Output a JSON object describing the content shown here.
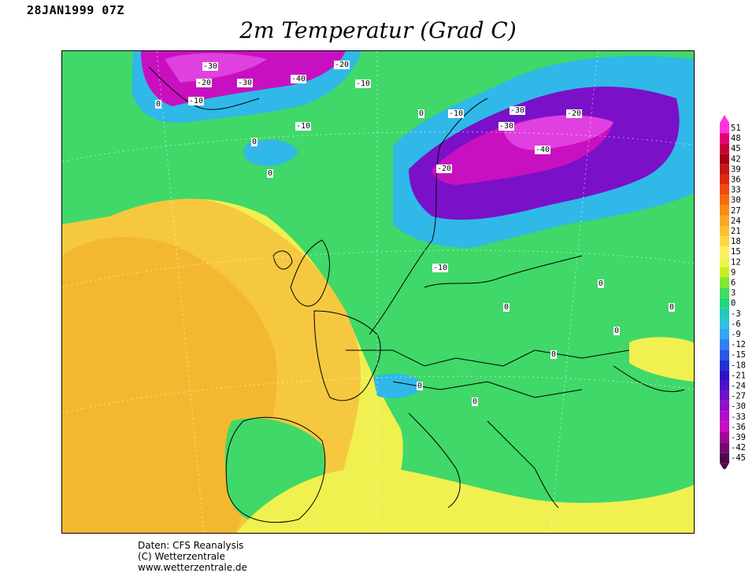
{
  "header": {
    "date": "28JAN1999 07Z",
    "title": "2m Temperatur (Grad C)"
  },
  "credits": {
    "line1": "Daten: CFS Reanalysis",
    "line2": "(C) Wetterzentrale",
    "line3": "www.wetterzentrale.de"
  },
  "legend": {
    "levels": [
      "51",
      "48",
      "45",
      "42",
      "39",
      "36",
      "33",
      "30",
      "27",
      "24",
      "21",
      "18",
      "15",
      "12",
      "9",
      "6",
      "3",
      "0",
      "-3",
      "-6",
      "-9",
      "-12",
      "-15",
      "-18",
      "-21",
      "-24",
      "-27",
      "-30",
      "-33",
      "-36",
      "-39",
      "-42",
      "-45"
    ],
    "colors": [
      "#ff33dd",
      "#e0007a",
      "#c8003a",
      "#a80010",
      "#c81818",
      "#e02a10",
      "#f04a10",
      "#f86a10",
      "#fb8a14",
      "#fba828",
      "#fcc030",
      "#fcd840",
      "#fdf060",
      "#f0f250",
      "#c8f020",
      "#80e830",
      "#40dc60",
      "#20d880",
      "#20ccb8",
      "#30c0e0",
      "#30a8f0",
      "#3080f0",
      "#2858e8",
      "#2030d8",
      "#3010c8",
      "#5010c8",
      "#7010c8",
      "#9010c8",
      "#b010c8",
      "#c810c0",
      "#a00898",
      "#780870",
      "#500848"
    ]
  },
  "map_labels": {
    "contour_labels": [
      "-30",
      "-20",
      "-10",
      "0",
      "-40",
      "-30",
      "-20",
      "-10",
      "0",
      "-10",
      "-30",
      "-20",
      "-40",
      "-30",
      "-20",
      "-10",
      "0",
      "0",
      "-10",
      "0",
      "0",
      "0",
      "0",
      "0",
      "0",
      "0"
    ]
  },
  "colors": {
    "warm": "#f5e86a",
    "mild": "#f0f050",
    "neutral": "#40d868",
    "cold": "#30b8e8",
    "very_cold": "#7a10c8",
    "extreme_cold": "#d810d0"
  }
}
